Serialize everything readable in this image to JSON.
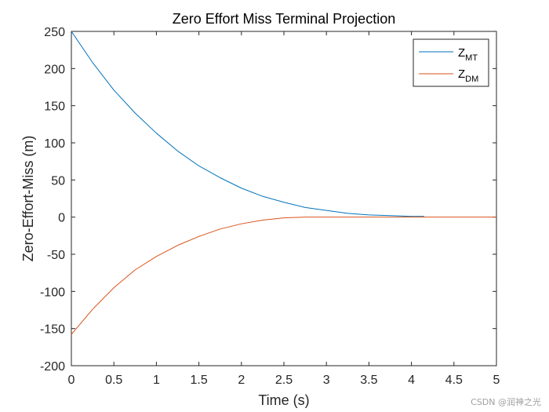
{
  "chart_data": {
    "type": "line",
    "title": "Zero Effort Miss Terminal Projection",
    "xlabel": "Time (s)",
    "ylabel": "Zero-Effort-Miss (m)",
    "xlim": [
      0,
      5
    ],
    "ylim": [
      -200,
      250
    ],
    "xticks": [
      0,
      0.5,
      1,
      1.5,
      2,
      2.5,
      3,
      3.5,
      4,
      4.5,
      5
    ],
    "xtick_labels": [
      "0",
      "0.5",
      "1",
      "1.5",
      "2",
      "2.5",
      "3",
      "3.5",
      "4",
      "4.5",
      "5"
    ],
    "yticks": [
      -200,
      -150,
      -100,
      -50,
      0,
      50,
      100,
      150,
      200,
      250
    ],
    "ytick_labels": [
      "-200",
      "-150",
      "-100",
      "-50",
      "0",
      "50",
      "100",
      "150",
      "200",
      "250"
    ],
    "legend_position": "top-right",
    "series": [
      {
        "name": "Z",
        "subscript": "MT",
        "color": "#0072BD",
        "x": [
          0,
          0.25,
          0.5,
          0.75,
          1,
          1.25,
          1.5,
          1.75,
          2,
          2.25,
          2.5,
          2.75,
          3,
          3.25,
          3.5,
          3.75,
          4,
          4.15
        ],
        "y": [
          250,
          208,
          171,
          140,
          113,
          89,
          69,
          53,
          39,
          28,
          20,
          13,
          9,
          5,
          3,
          2,
          1,
          1
        ]
      },
      {
        "name": "Z",
        "subscript": "DM",
        "color": "#D95319",
        "x": [
          0,
          0.25,
          0.5,
          0.75,
          1,
          1.25,
          1.5,
          1.75,
          2,
          2.25,
          2.5,
          2.75,
          3,
          3.5,
          4,
          4.5,
          5
        ],
        "y": [
          -158,
          -124,
          -95,
          -71,
          -53,
          -38,
          -26,
          -16,
          -9,
          -4,
          -1,
          0,
          0,
          0,
          0,
          0,
          0
        ]
      }
    ]
  },
  "watermark": "CSDN @润神之光"
}
